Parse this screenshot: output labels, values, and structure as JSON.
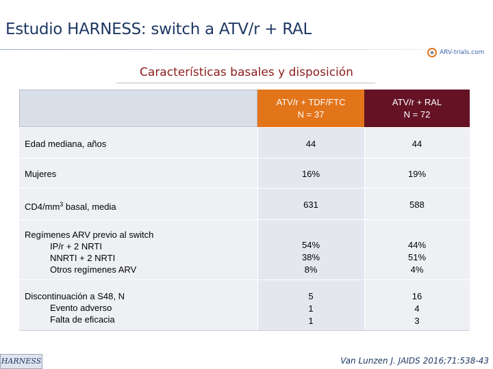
{
  "title": "Estudio HARNESS: switch a ATV/r + RAL",
  "logo": {
    "text": "ARV-trials.com",
    "icon": "arv-trials-logo-icon"
  },
  "subtitle": "Características basales y disposición",
  "table": {
    "columns": [
      {
        "line1": "ATV/r + TDF/FTC",
        "line2": "N = 37",
        "color": "#e2741a"
      },
      {
        "line1": "ATV/r + RAL",
        "line2": "N = 72",
        "color": "#641224"
      }
    ],
    "rows": [
      {
        "label": "Edad mediana, años",
        "sub": [],
        "col1": [
          "44"
        ],
        "col2": [
          "44"
        ]
      },
      {
        "label": "Mujeres",
        "sub": [],
        "col1": [
          "16%"
        ],
        "col2": [
          "19%"
        ]
      },
      {
        "label_pre": "CD4/mm",
        "label_sup": "3",
        "label_post": " basal, media",
        "col1": [
          "631"
        ],
        "col2": [
          "588"
        ]
      },
      {
        "label": "Regímenes ARV previo al switch",
        "sub": [
          "IP/r + 2 NRTI",
          "NNRTI + 2 NRTI",
          "Otros regímenes ARV"
        ],
        "col1": [
          "54%",
          "38%",
          "8%"
        ],
        "col2": [
          "44%",
          "51%",
          "4%"
        ]
      },
      {
        "label": "Discontinuación a S48, N",
        "sub": [
          "Evento adverso",
          "Falta de eficacia"
        ],
        "col1": [
          "5",
          "1",
          "1"
        ],
        "col2": [
          "16",
          "4",
          "3"
        ]
      }
    ]
  },
  "footer": {
    "badge": "HARNESS",
    "citation": "Van Lunzen J. JAIDS 2016;71:538-43"
  }
}
